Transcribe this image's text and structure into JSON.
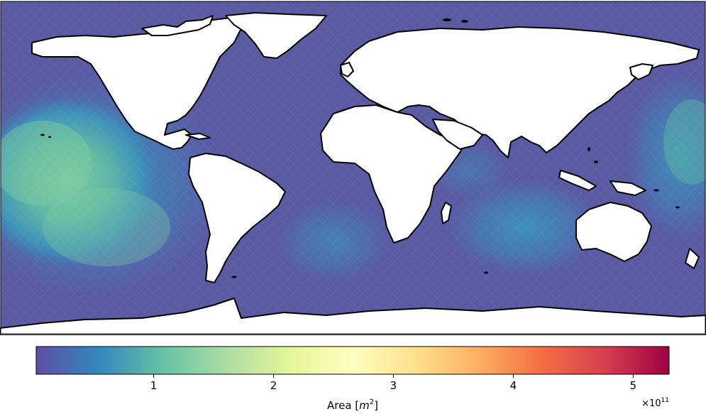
{
  "map": {
    "projection": "plate carree",
    "variable": "mesh cell area",
    "units": "m^2",
    "land_color": "#ffffff",
    "coastline_color": "#000000",
    "ocean_colormap": "Spectral_r"
  },
  "colorbar": {
    "label_main": "Area [",
    "label_var": "m",
    "label_exp": "2",
    "label_end": "]",
    "offset_base": "×10",
    "offset_exp": "11",
    "range": [
      0.02,
      5.3
    ],
    "ticks": [
      {
        "value": 1,
        "label": "1"
      },
      {
        "value": 2,
        "label": "2"
      },
      {
        "value": 3,
        "label": "3"
      },
      {
        "value": 4,
        "label": "4"
      },
      {
        "value": 5,
        "label": "5"
      }
    ],
    "colormap_stops": [
      "#5e4fa2",
      "#3288bd",
      "#66c2a5",
      "#abdda4",
      "#e6f598",
      "#ffffbf",
      "#fee08b",
      "#fdae61",
      "#f46d43",
      "#d53e4f",
      "#9e0142"
    ]
  }
}
